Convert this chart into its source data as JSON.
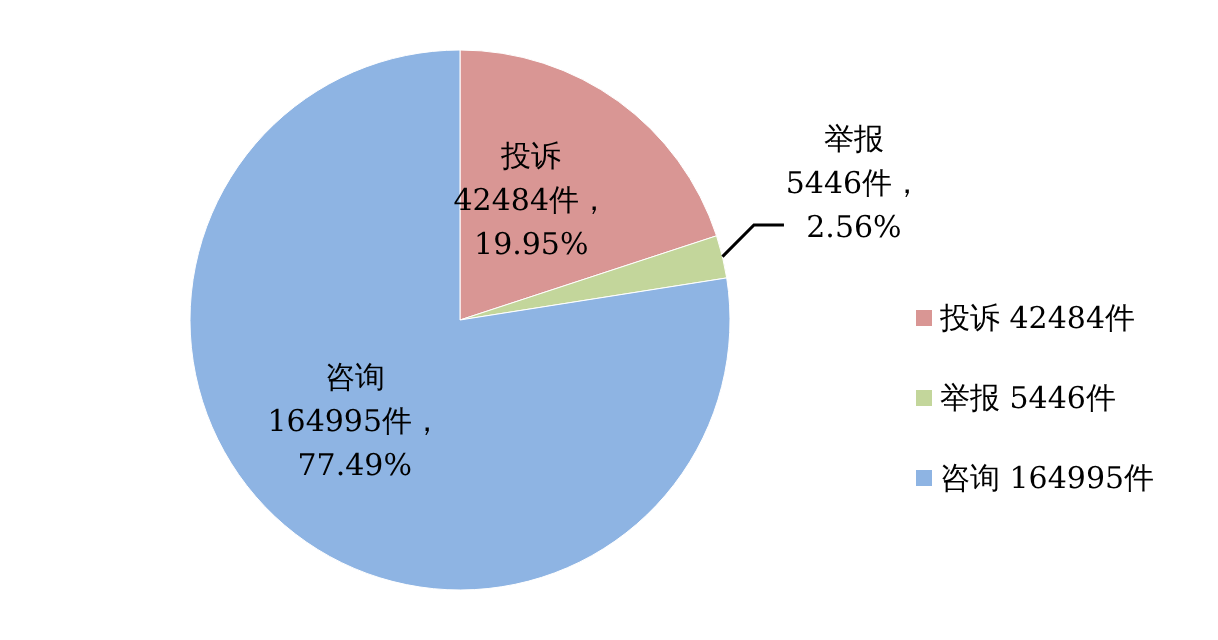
{
  "chart_data": {
    "type": "pie",
    "categories": [
      "投诉 42484件",
      "举报 5446件",
      "咨询 164995件"
    ],
    "values": [
      42484,
      5446,
      164995
    ],
    "colors": [
      "#d99694",
      "#c3d69b",
      "#8eb4e3"
    ],
    "value_labels": [
      "投诉\n42484件，\n19.95%",
      "举报\n5446件，\n2.56%",
      "咨询\n164995件，\n77.49%"
    ],
    "legend": "right"
  }
}
